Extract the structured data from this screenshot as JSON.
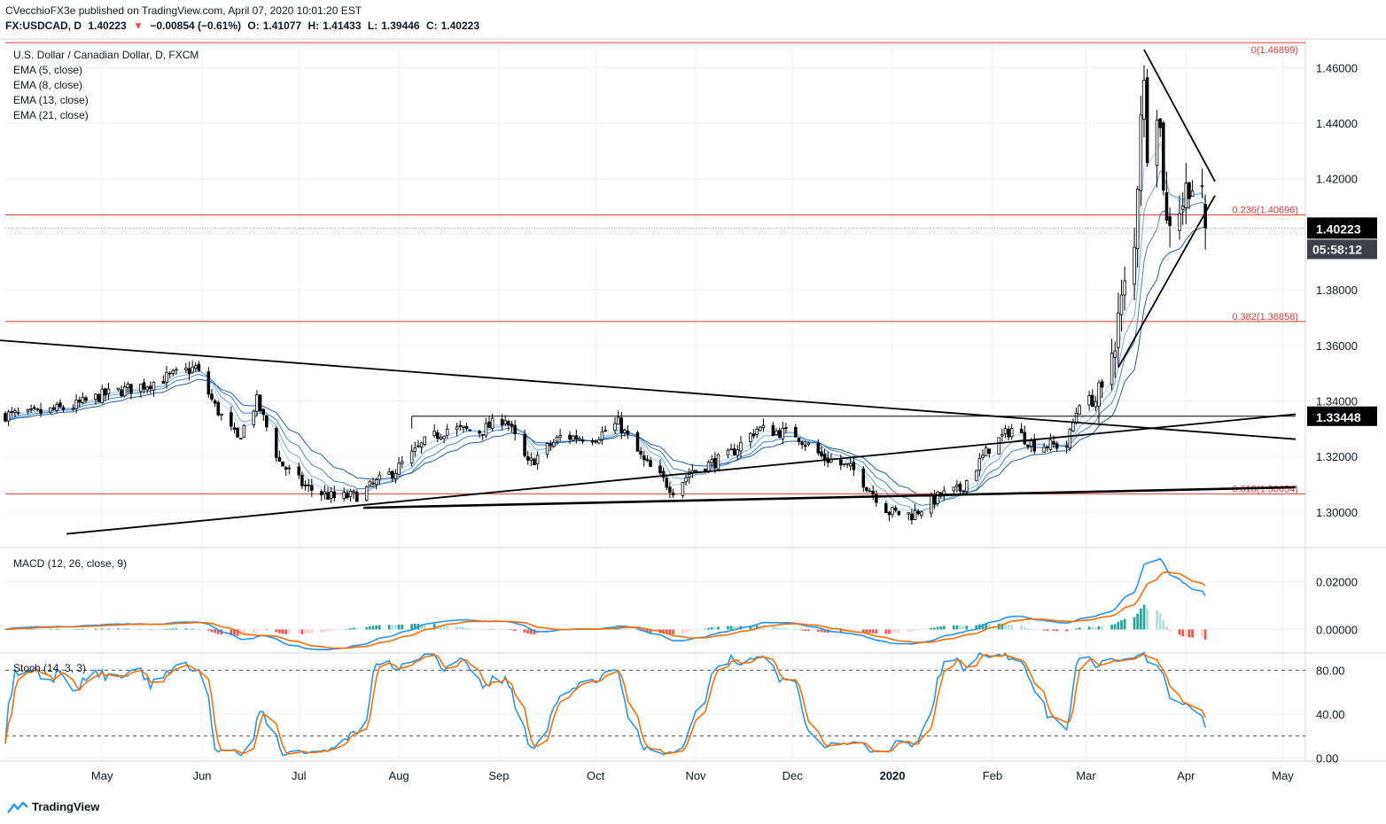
{
  "header": {
    "publish_line": "CVecchioFX3e published on TradingView.com, April 07, 2020 10:01:20 EST",
    "symbol_ohlc": [
      "FX:USDCAD, D",
      "1.40223",
      "▼",
      "−0.00854 (−0.61%)",
      "O:",
      "1.41077",
      "H:",
      "1.41433",
      "L:",
      "1.39446",
      "C:",
      "1.40223"
    ]
  },
  "legend": {
    "title": "U.S. Dollar / Canadian Dollar, D, FXCM",
    "ema": [
      "EMA (5, close)",
      "EMA (8, close)",
      "EMA (13, close)",
      "EMA (21, close)"
    ],
    "macd": "MACD (12, 26, close, 9)",
    "stoch": "Stoch (14, 3, 3)"
  },
  "branding": {
    "logo_text": "TradingView",
    "logo_icon": "tradingview-logo-icon"
  },
  "colors": {
    "up_candle": "#ffffff",
    "down_candle": "#000000",
    "fib_line": "#e03a3a",
    "ema": "#2f74c0",
    "macd_line": "#2196f3",
    "signal_line": "#ff6d00",
    "hist_pos": "#26a69a",
    "hist_neg": "#ef5350",
    "price_tag_bg": "#000000",
    "price_tag_fg": "#ffffff"
  },
  "chart_data": [
    {
      "type": "candlestick",
      "title": "U.S. Dollar / Canadian Dollar, D, FXCM",
      "x_tick_labels": [
        "May",
        "Jun",
        "Jul",
        "Aug",
        "Sep",
        "Oct",
        "Nov",
        "Dec",
        "2020",
        "Feb",
        "Mar",
        "Apr",
        "May"
      ],
      "y_tick_labels": [
        "1.46000",
        "1.44000",
        "1.42000",
        "1.40000",
        "1.38000",
        "1.36000",
        "1.34000",
        "1.32000",
        "1.30000"
      ],
      "ylim": [
        1.2875,
        1.47
      ],
      "last_price": "1.40223",
      "countdown": "05:58:12",
      "support_label": "1.33448",
      "fib_levels": [
        {
          "label": "0(1.46899)",
          "value": 1.46899
        },
        {
          "label": "0.236(1.40696)",
          "value": 1.40696
        },
        {
          "label": "0.382(1.36858)",
          "value": 1.36858
        },
        {
          "label": "0.618(1.30654)",
          "value": 1.30654
        }
      ],
      "anchors": [
        {
          "date": "2019-04-08",
          "close": 1.335
        },
        {
          "date": "2019-04-22",
          "close": 1.338
        },
        {
          "date": "2019-05-01",
          "close": 1.342
        },
        {
          "date": "2019-05-15",
          "close": 1.346
        },
        {
          "date": "2019-05-30",
          "close": 1.352
        },
        {
          "date": "2019-06-05",
          "close": 1.338
        },
        {
          "date": "2019-06-12",
          "close": 1.326
        },
        {
          "date": "2019-06-18",
          "close": 1.34
        },
        {
          "date": "2019-06-25",
          "close": 1.318
        },
        {
          "date": "2019-07-03",
          "close": 1.309
        },
        {
          "date": "2019-07-12",
          "close": 1.305
        },
        {
          "date": "2019-07-19",
          "close": 1.306
        },
        {
          "date": "2019-07-31",
          "close": 1.315
        },
        {
          "date": "2019-08-09",
          "close": 1.325
        },
        {
          "date": "2019-08-16",
          "close": 1.33
        },
        {
          "date": "2019-08-26",
          "close": 1.329
        },
        {
          "date": "2019-09-03",
          "close": 1.334
        },
        {
          "date": "2019-09-10",
          "close": 1.317
        },
        {
          "date": "2019-09-20",
          "close": 1.327
        },
        {
          "date": "2019-10-01",
          "close": 1.327
        },
        {
          "date": "2019-10-08",
          "close": 1.332
        },
        {
          "date": "2019-10-16",
          "close": 1.318
        },
        {
          "date": "2019-10-25",
          "close": 1.308
        },
        {
          "date": "2019-10-31",
          "close": 1.315
        },
        {
          "date": "2019-11-11",
          "close": 1.32
        },
        {
          "date": "2019-11-20",
          "close": 1.33
        },
        {
          "date": "2019-12-02",
          "close": 1.328
        },
        {
          "date": "2019-12-10",
          "close": 1.32
        },
        {
          "date": "2019-12-20",
          "close": 1.315
        },
        {
          "date": "2019-12-31",
          "close": 1.3
        },
        {
          "date": "2020-01-07",
          "close": 1.299
        },
        {
          "date": "2020-01-16",
          "close": 1.306
        },
        {
          "date": "2020-01-22",
          "close": 1.308
        },
        {
          "date": "2020-01-31",
          "close": 1.323
        },
        {
          "date": "2020-02-07",
          "close": 1.33
        },
        {
          "date": "2020-02-14",
          "close": 1.324
        },
        {
          "date": "2020-02-24",
          "close": 1.324
        },
        {
          "date": "2020-02-28",
          "close": 1.34
        },
        {
          "date": "2020-03-06",
          "close": 1.34
        },
        {
          "date": "2020-03-10",
          "close": 1.364
        },
        {
          "date": "2020-03-13",
          "close": 1.38
        },
        {
          "date": "2020-03-16",
          "close": 1.394
        },
        {
          "date": "2020-03-18",
          "close": 1.447
        },
        {
          "date": "2020-03-19",
          "close": 1.452
        },
        {
          "date": "2020-03-20",
          "close": 1.433
        },
        {
          "date": "2020-03-23",
          "close": 1.448
        },
        {
          "date": "2020-03-24",
          "close": 1.437
        },
        {
          "date": "2020-03-25",
          "close": 1.42
        },
        {
          "date": "2020-03-26",
          "close": 1.403
        },
        {
          "date": "2020-03-27",
          "close": 1.407
        },
        {
          "date": "2020-03-31",
          "close": 1.412
        },
        {
          "date": "2020-04-02",
          "close": 1.42
        },
        {
          "date": "2020-04-06",
          "close": 1.4108
        },
        {
          "date": "2020-04-07",
          "close": 1.4022
        }
      ],
      "last_bar": {
        "date": "2020-04-07",
        "open": 1.41077,
        "high": 1.41433,
        "low": 1.39446,
        "close": 1.40223
      },
      "trendlines": [
        {
          "from": {
            "date": "2019-03-28",
            "price": 1.362
          },
          "to": {
            "date": "2020-05-05",
            "price": 1.3262
          }
        },
        {
          "from": {
            "date": "2019-04-20",
            "price": 1.2921
          },
          "to": {
            "date": "2020-05-05",
            "price": 1.3352
          }
        },
        {
          "from": {
            "date": "2019-07-21",
            "price": 1.3015
          },
          "to": {
            "date": "2020-05-05",
            "price": 1.3089
          }
        },
        {
          "from": {
            "date": "2020-03-19",
            "price": 1.4665
          },
          "to": {
            "date": "2020-04-10",
            "price": 1.419
          }
        },
        {
          "from": {
            "date": "2020-03-11",
            "price": 1.352
          },
          "to": {
            "date": "2020-04-10",
            "price": 1.414
          }
        },
        {
          "from": {
            "date": "2019-08-05",
            "price": 1.33448
          },
          "to": {
            "date": "2020-05-05",
            "price": 1.33448
          }
        },
        {
          "from": {
            "date": "2019-08-05",
            "price": 1.33448
          },
          "to": {
            "date": "2019-08-05",
            "price": 1.33
          }
        }
      ]
    },
    {
      "type": "line",
      "title": "MACD (12, 26, close, 9)",
      "y_tick_labels": [
        "0.02000",
        "0.00000"
      ],
      "ylim": [
        -0.0095,
        0.034
      ],
      "series": [
        {
          "name": "MACD",
          "values": "computed from price series (EMA12 − EMA26)"
        },
        {
          "name": "Signal",
          "values": "EMA9 of MACD"
        }
      ]
    },
    {
      "type": "line",
      "title": "Stoch (14, 3, 3)",
      "y_tick_labels": [
        "80.00",
        "40.00",
        "0.00"
      ],
      "ylim": [
        -2,
        95
      ],
      "levels": [
        80,
        20
      ]
    }
  ]
}
